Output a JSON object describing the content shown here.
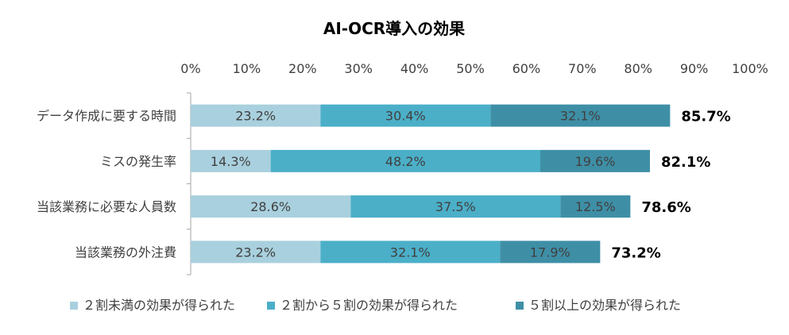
{
  "chart_data": {
    "type": "bar",
    "orientation": "horizontal",
    "stacked": true,
    "title": "AI-OCR導入の効果",
    "categories": [
      "データ作成に要する時間",
      "ミスの発生率",
      "当該業務に必要な人員数",
      "当該業務の外注費"
    ],
    "series": [
      {
        "name": "２割未満の効果が得られた",
        "color": "#a9d0de",
        "values": [
          23.2,
          14.3,
          28.6,
          23.2
        ]
      },
      {
        "name": "２割から５割の効果が得られた",
        "color": "#4bafc8",
        "values": [
          30.4,
          48.2,
          37.5,
          32.1
        ]
      },
      {
        "name": "５割以上の効果が得られた",
        "color": "#3e8fa6",
        "values": [
          32.1,
          19.6,
          12.5,
          17.9
        ]
      }
    ],
    "segment_labels": [
      [
        "23.2%",
        "30.4%",
        "32.1%"
      ],
      [
        "14.3%",
        "48.2%",
        "19.6%"
      ],
      [
        "28.6%",
        "37.5%",
        "12.5%"
      ],
      [
        "23.2%",
        "32.1%",
        "17.9%"
      ]
    ],
    "totals": [
      85.7,
      82.1,
      78.6,
      73.2
    ],
    "total_labels": [
      "85.7%",
      "82.1%",
      "78.6%",
      "73.2%"
    ],
    "xlim": [
      0,
      100
    ],
    "xticks": [
      "0%",
      "10%",
      "20%",
      "30%",
      "40%",
      "50%",
      "60%",
      "70%",
      "80%",
      "90%",
      "100%"
    ],
    "xaxis_position": "top",
    "grid": false,
    "legend_position": "bottom"
  }
}
